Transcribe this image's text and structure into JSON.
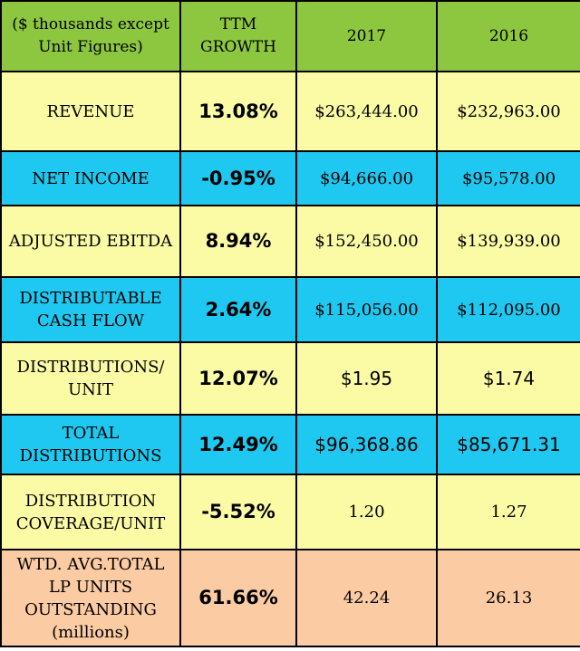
{
  "header": {
    "col_label": "($ thousands except Unit Figures)",
    "col_growth": "TTM GROWTH",
    "col_2017": "2017",
    "col_2016": "2016"
  },
  "rows": [
    {
      "label": "REVENUE",
      "growth": "13.08%",
      "y2017": "$263,444.00",
      "y2016": "$232,963.00"
    },
    {
      "label": "NET INCOME",
      "growth": "-0.95%",
      "y2017": "$94,666.00",
      "y2016": "$95,578.00"
    },
    {
      "label": "ADJUSTED EBITDA",
      "growth": "8.94%",
      "y2017": "$152,450.00",
      "y2016": "$139,939.00"
    },
    {
      "label": "DISTRIBUTABLE CASH FLOW",
      "growth": "2.64%",
      "y2017": "$115,056.00",
      "y2016": "$112,095.00"
    },
    {
      "label": "DISTRIBUTIONS/ UNIT",
      "growth": "12.07%",
      "y2017": "$1.95",
      "y2016": "$1.74"
    },
    {
      "label": "TOTAL DISTRIBUTIONS",
      "growth": "12.49%",
      "y2017": "$96,368.86",
      "y2016": "$85,671.31"
    },
    {
      "label": "DISTRIBUTION COVERAGE/UNIT",
      "growth": "-5.52%",
      "y2017": "1.20",
      "y2016": "1.27"
    },
    {
      "label": "WTD. AVG.TOTAL LP UNITS OUTSTANDING (millions)",
      "growth": "61.66%",
      "y2017": "42.24",
      "y2016": "26.13"
    }
  ],
  "colors": {
    "header_bg": "#8dc63f",
    "row_yellow": "#fbfba6",
    "row_blue": "#1fc8f0",
    "row_peach": "#fbcba3"
  }
}
